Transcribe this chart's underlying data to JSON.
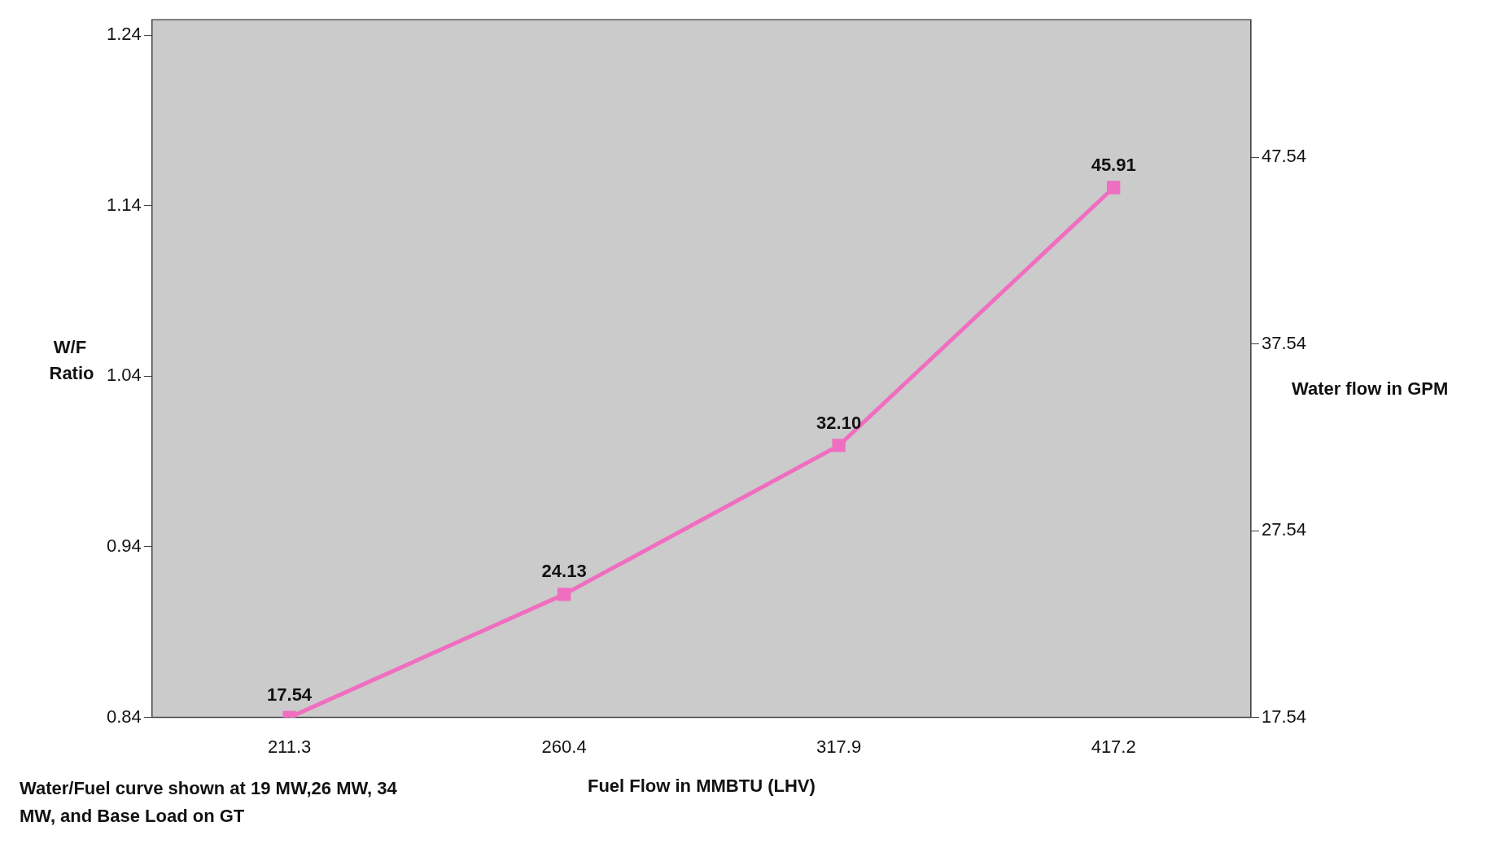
{
  "chart_data": {
    "type": "line",
    "xlabel": "Fuel Flow in MMBTU (LHV)",
    "ylabel": "W/F Ratio",
    "y2label": "Water flow in GPM",
    "annotations": [
      "Water/Fuel curve shown at 19 MW,26 MW, 34 MW, and Base Load on GT"
    ],
    "categories": [
      "211.3",
      "260.4",
      "317.9",
      "417.2"
    ],
    "series": [
      {
        "color": "#f06ec0",
        "axis": "y2",
        "values": [
          17.54,
          24.13,
          32.1,
          45.91
        ],
        "value_labels": [
          "17.54",
          "24.13",
          "32.10",
          "45.91"
        ]
      }
    ],
    "ylim": [
      0.84,
      1.249
    ],
    "yticks": [
      0.84,
      0.94,
      1.04,
      1.14,
      1.24
    ],
    "y2lim": [
      17.54,
      54.9
    ],
    "y2ticks": [
      17.54,
      27.54,
      37.54,
      47.54
    ],
    "marker": "square",
    "line_style": "solid",
    "grid": false,
    "legend": false
  }
}
